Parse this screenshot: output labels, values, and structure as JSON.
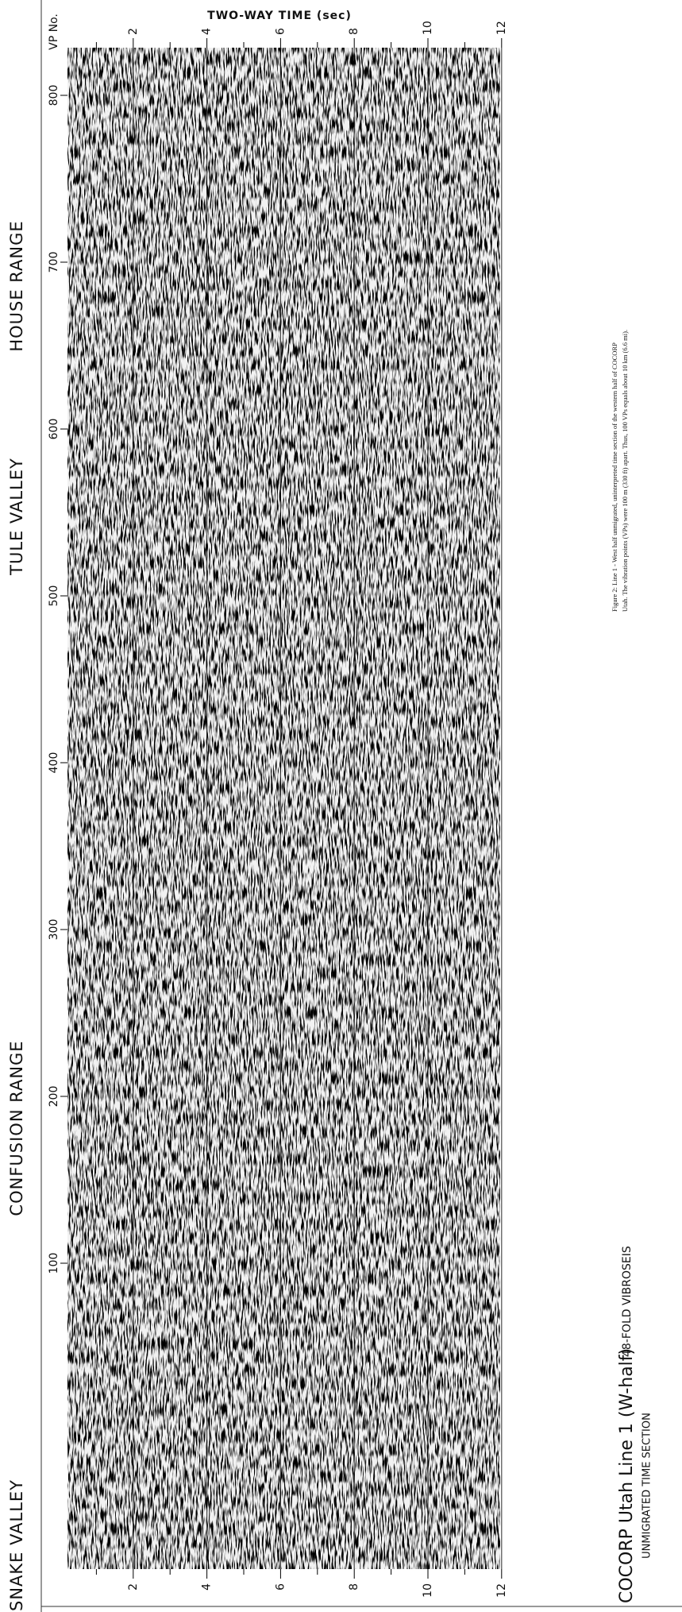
{
  "header": {
    "title": "COCORP Utah Line 1 (W-half)",
    "subtitle": "48-FOLD VIBROSEIS",
    "section": "UNMIGRATED TIME SECTION"
  },
  "time_axis": {
    "label": "TWO-WAY TIME (sec)",
    "ticks": [
      "2",
      "4",
      "6",
      "8",
      "10",
      "12"
    ]
  },
  "vp_axis": {
    "label": "VP No.",
    "ticks": [
      "800",
      "700",
      "600",
      "500",
      "400",
      "300",
      "200",
      "100"
    ]
  },
  "regions": [
    "HOUSE RANGE",
    "TULE VALLEY",
    "CONFUSION RANGE",
    "SNAKE VALLEY"
  ],
  "caption": [
    "Figure 2: Line 1 - West half unmigrated, uninterpreted time section of the western half of COCORP",
    "Utah. The vibration points (VPs) were 100 m (330 ft) apart. Thus, 100 VPs equals about 10 km (6.6 mi)."
  ]
}
